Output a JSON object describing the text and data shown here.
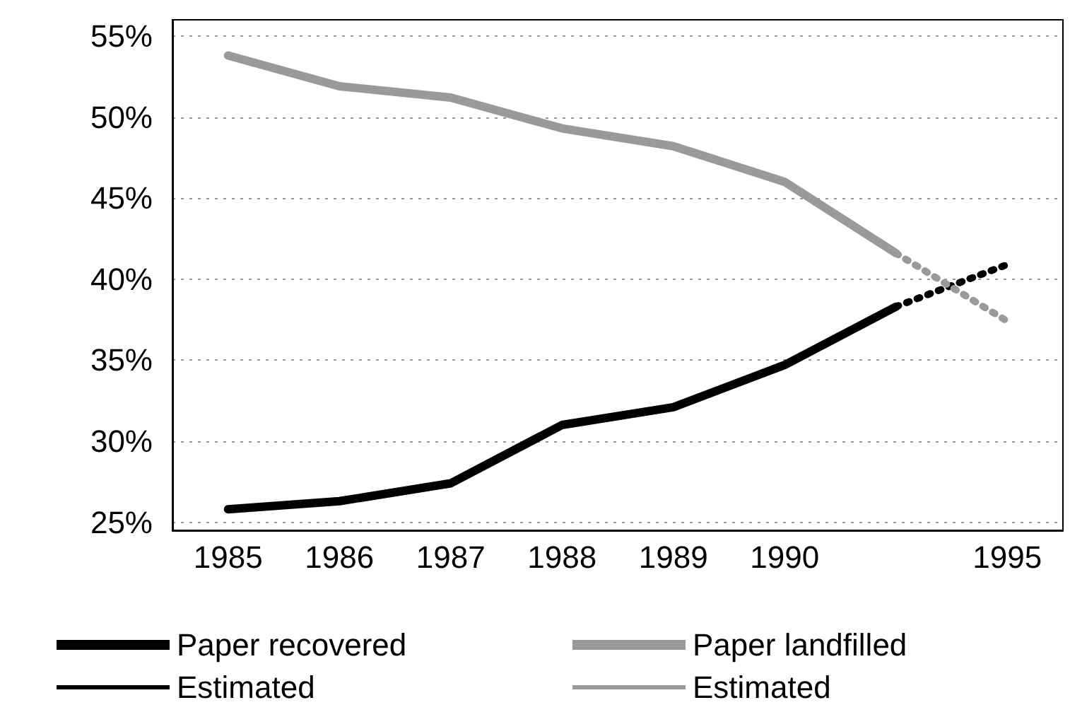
{
  "chart_data": {
    "type": "line",
    "categories": [
      "1985",
      "1986",
      "1987",
      "1988",
      "1989",
      "1990",
      null,
      "1995"
    ],
    "series": [
      {
        "name": "Paper recovered",
        "color": "#000000",
        "line_style": "solid",
        "values": [
          25.8,
          26.3,
          27.4,
          31.0,
          32.1,
          34.7,
          38.3,
          null
        ]
      },
      {
        "name": "Paper landfilled",
        "color": "#9a9a9a",
        "line_style": "solid",
        "values": [
          53.8,
          51.9,
          51.2,
          49.3,
          48.2,
          46.0,
          41.6,
          null
        ]
      },
      {
        "name": "Estimated",
        "color": "#000000",
        "line_style": "dotted",
        "values": [
          null,
          null,
          null,
          null,
          null,
          null,
          38.3,
          40.9
        ]
      },
      {
        "name": "Estimated",
        "color": "#9a9a9a",
        "line_style": "dotted",
        "values": [
          null,
          null,
          null,
          null,
          null,
          null,
          41.6,
          37.4
        ]
      }
    ],
    "ylim": [
      24.5,
      56
    ],
    "yticks": [
      {
        "value": 25,
        "label": "25%"
      },
      {
        "value": 30,
        "label": "30%"
      },
      {
        "value": 35,
        "label": "35%"
      },
      {
        "value": 40,
        "label": "40%"
      },
      {
        "value": 45,
        "label": "45%"
      },
      {
        "value": 50,
        "label": "50%"
      },
      {
        "value": 55,
        "label": "55%"
      }
    ],
    "grid": "y",
    "legend": "bottom",
    "marker": "none"
  }
}
